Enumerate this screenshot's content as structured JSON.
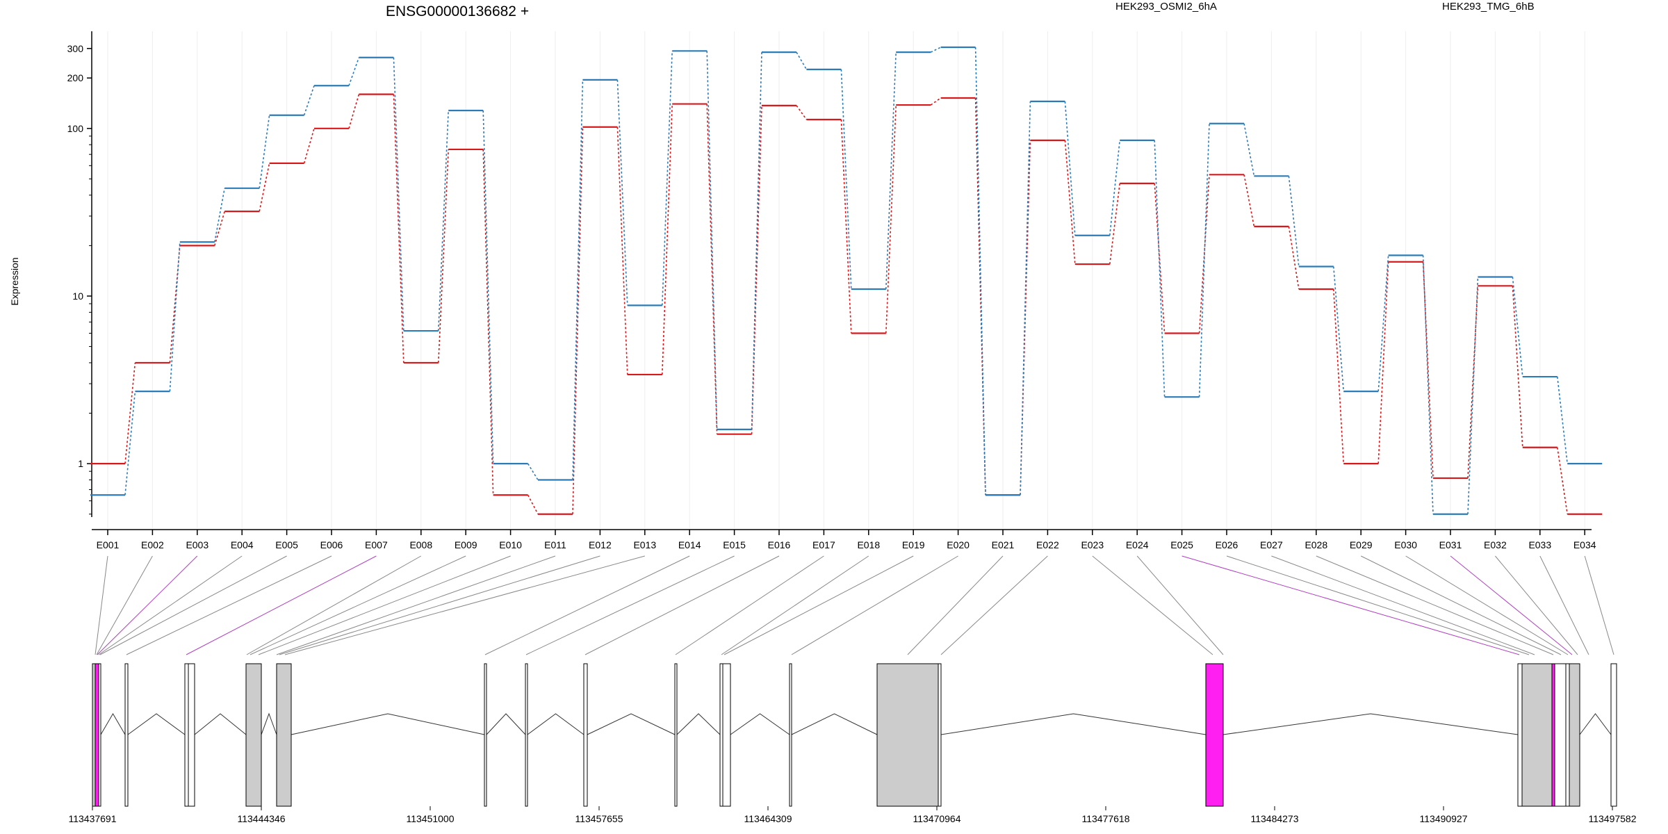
{
  "chart_data": {
    "type": "line",
    "title": "ENSG00000136682 +",
    "ylabel": "Expression",
    "xlabel": "",
    "yscale": "log",
    "ylim": [
      0.48,
      380
    ],
    "yticks": [
      {
        "value": 1,
        "label": "1"
      },
      {
        "value": 10,
        "label": "10"
      },
      {
        "value": 100,
        "label": "100"
      },
      {
        "value": 200,
        "label": "200"
      },
      {
        "value": 300,
        "label": "300"
      }
    ],
    "legend_placement": "top-right",
    "categories": [
      "E001",
      "E002",
      "E003",
      "E004",
      "E005",
      "E006",
      "E007",
      "E008",
      "E009",
      "E010",
      "E011",
      "E012",
      "E013",
      "E014",
      "E015",
      "E016",
      "E017",
      "E018",
      "E019",
      "E020",
      "E021",
      "E022",
      "E023",
      "E024",
      "E025",
      "E026",
      "E027",
      "E028",
      "E029",
      "E030",
      "E031",
      "E032",
      "E033",
      "E034"
    ],
    "series": [
      {
        "name": "HEK293_OSMI2_6hA",
        "color": "#d7191c",
        "values": [
          1.0,
          4.0,
          20,
          32,
          62,
          100,
          160,
          4.0,
          75,
          0.65,
          0.5,
          102,
          3.4,
          140,
          1.5,
          137,
          113,
          6.0,
          138,
          152,
          0.65,
          85,
          15.5,
          47,
          6.0,
          53,
          26,
          11,
          1.0,
          16,
          0.82,
          11.5,
          1.25,
          0.5
        ]
      },
      {
        "name": "HEK293_TMG_6hB",
        "color": "#2c7bb6",
        "values": [
          0.65,
          2.7,
          21,
          44,
          120,
          180,
          265,
          6.2,
          128,
          1.0,
          0.8,
          195,
          8.8,
          290,
          1.6,
          285,
          225,
          11,
          285,
          305,
          0.65,
          145,
          23,
          85,
          2.5,
          107,
          52,
          15,
          2.7,
          17.5,
          0.5,
          13,
          3.3,
          1.0
        ]
      }
    ],
    "gene_model": {
      "coordinate_ticks": [
        "113437691",
        "113444346",
        "113451000",
        "113457655",
        "113464309",
        "113470964",
        "113477618",
        "113484273",
        "113490927",
        "113497582"
      ],
      "highlight_color": "#ff1ff0",
      "exon_color": "#cccccc",
      "highlighted_exons": [
        "E003",
        "E007",
        "E025",
        "E031"
      ]
    }
  }
}
